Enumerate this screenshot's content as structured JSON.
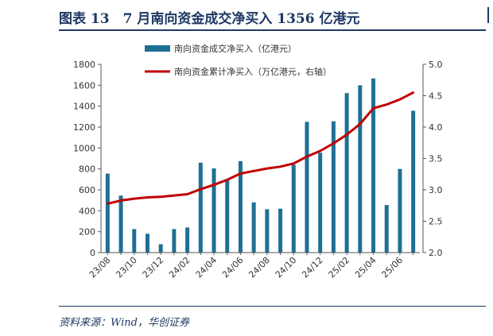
{
  "header": {
    "title": "图表 13　7 月南向资金成交净买入 1356 亿港元"
  },
  "footer": {
    "source": "资料来源：Wind，华创证券"
  },
  "chart_data": {
    "type": "bar",
    "categories": [
      "23/08",
      "23/09",
      "23/10",
      "23/11",
      "23/12",
      "24/01",
      "24/02",
      "24/03",
      "24/04",
      "24/05",
      "24/06",
      "24/07",
      "24/08",
      "24/09",
      "24/10",
      "24/11",
      "24/12",
      "25/01",
      "25/02",
      "25/03",
      "25/04",
      "25/05",
      "25/06",
      "25/07"
    ],
    "x_tick_labels": [
      "23/08",
      "23/10",
      "23/12",
      "24/02",
      "24/04",
      "24/06",
      "24/08",
      "24/10",
      "24/12",
      "25/02",
      "25/04",
      "25/06"
    ],
    "series": [
      {
        "name": "南向资金成交净买入（亿港元）",
        "type": "bar",
        "axis": "left",
        "color": "#1f6f94",
        "values": [
          755,
          545,
          225,
          180,
          80,
          225,
          240,
          860,
          805,
          695,
          875,
          480,
          415,
          420,
          840,
          1250,
          955,
          1255,
          1525,
          1600,
          1665,
          455,
          800,
          1356
        ]
      },
      {
        "name": "南向资金累计净买入（万亿港元，右轴）",
        "type": "line",
        "axis": "right",
        "color": "#c00000",
        "values": [
          2.78,
          2.83,
          2.86,
          2.88,
          2.89,
          2.91,
          2.93,
          3.01,
          3.08,
          3.16,
          3.26,
          3.3,
          3.34,
          3.37,
          3.42,
          3.53,
          3.62,
          3.74,
          3.88,
          4.05,
          4.3,
          4.36,
          4.44,
          4.55
        ]
      }
    ],
    "y_left": {
      "min": 0,
      "max": 1800,
      "ticks": [
        "0",
        "200",
        "400",
        "600",
        "800",
        "1000",
        "1200",
        "1400",
        "1600",
        "1800"
      ]
    },
    "y_right": {
      "min": 2.0,
      "max": 5.0,
      "ticks": [
        "2.0",
        "2.5",
        "3.0",
        "3.5",
        "4.0",
        "4.5",
        "5.0"
      ]
    },
    "legend_position": "top-center",
    "grid": false
  }
}
